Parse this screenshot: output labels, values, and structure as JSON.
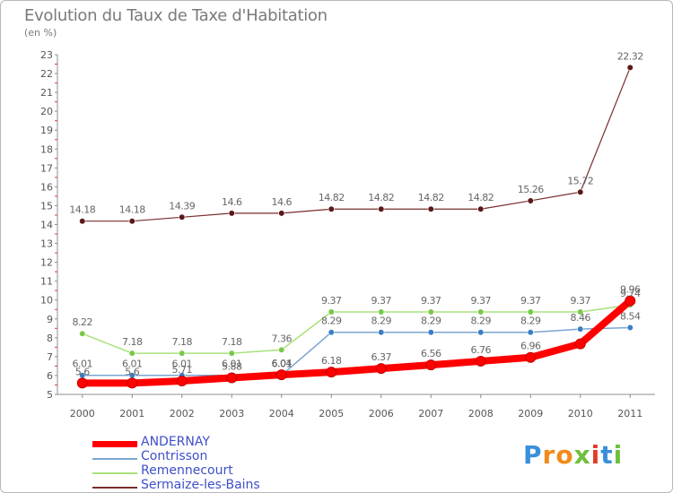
{
  "title": "Evolution du Taux de Taxe d'Habitation",
  "subtitle": "(en %)",
  "logo": {
    "text": "Proxiti",
    "colors": [
      "#3a8fd8",
      "#f28a1a",
      "#f28a1a",
      "#6fbf3c",
      "#e23c2b",
      "#3a8fd8",
      "#6fbf3c"
    ]
  },
  "chart_data": {
    "type": "line",
    "x": [
      "2000",
      "2001",
      "2002",
      "2003",
      "2004",
      "2005",
      "2006",
      "2007",
      "2008",
      "2009",
      "2010",
      "2011"
    ],
    "ylim": [
      5,
      23
    ],
    "yticks": [
      "5",
      "6",
      "7",
      "8",
      "9",
      "10",
      "11",
      "12",
      "13",
      "14",
      "15",
      "16",
      "17",
      "18",
      "19",
      "20",
      "21",
      "22",
      "23"
    ],
    "grid": false,
    "legend_position": "bottom-left",
    "series": [
      {
        "name": "ANDERNAY",
        "color": "#ff0000",
        "marker": "#ff0000",
        "width": 8,
        "values": [
          5.6,
          5.6,
          5.71,
          5.88,
          6.04,
          6.18,
          6.37,
          6.56,
          6.76,
          6.96,
          7.68,
          9.96
        ],
        "labels": [
          "5.6",
          "5.6",
          "5.71",
          "5.88",
          "6.04",
          "6.18",
          "6.37",
          "6.56",
          "6.76",
          "6.96",
          "",
          "9.96"
        ]
      },
      {
        "name": "Contrisson",
        "color": "#7aa5d0",
        "marker": "#3a7fc4",
        "width": 1.5,
        "values": [
          6.01,
          6.01,
          6.01,
          6.01,
          6.01,
          8.29,
          8.29,
          8.29,
          8.29,
          8.29,
          8.46,
          8.54
        ],
        "labels": [
          "6.01",
          "6.01",
          "6.01",
          "6.01",
          "6.01",
          "8.29",
          "8.29",
          "8.29",
          "8.29",
          "8.29",
          "8.46",
          "8.54"
        ]
      },
      {
        "name": "Remennecourt",
        "color": "#a8e27a",
        "marker": "#79c84a",
        "width": 1.5,
        "values": [
          8.22,
          7.18,
          7.18,
          7.18,
          7.36,
          9.37,
          9.37,
          9.37,
          9.37,
          9.37,
          9.37,
          9.74
        ],
        "labels": [
          "8.22",
          "7.18",
          "7.18",
          "7.18",
          "7.36",
          "9.37",
          "9.37",
          "9.37",
          "9.37",
          "9.37",
          "9.37",
          "9.74"
        ]
      },
      {
        "name": "Sermaize-les-Bains",
        "color": "#7a2c2c",
        "marker": "#5c1818",
        "width": 1.2,
        "values": [
          14.18,
          14.18,
          14.39,
          14.6,
          14.6,
          14.82,
          14.82,
          14.82,
          14.82,
          15.26,
          15.72,
          22.32
        ],
        "labels": [
          "14.18",
          "14.18",
          "14.39",
          "14.6",
          "14.6",
          "14.82",
          "14.82",
          "14.82",
          "14.82",
          "15.26",
          "15.72",
          "22.32"
        ]
      }
    ]
  }
}
